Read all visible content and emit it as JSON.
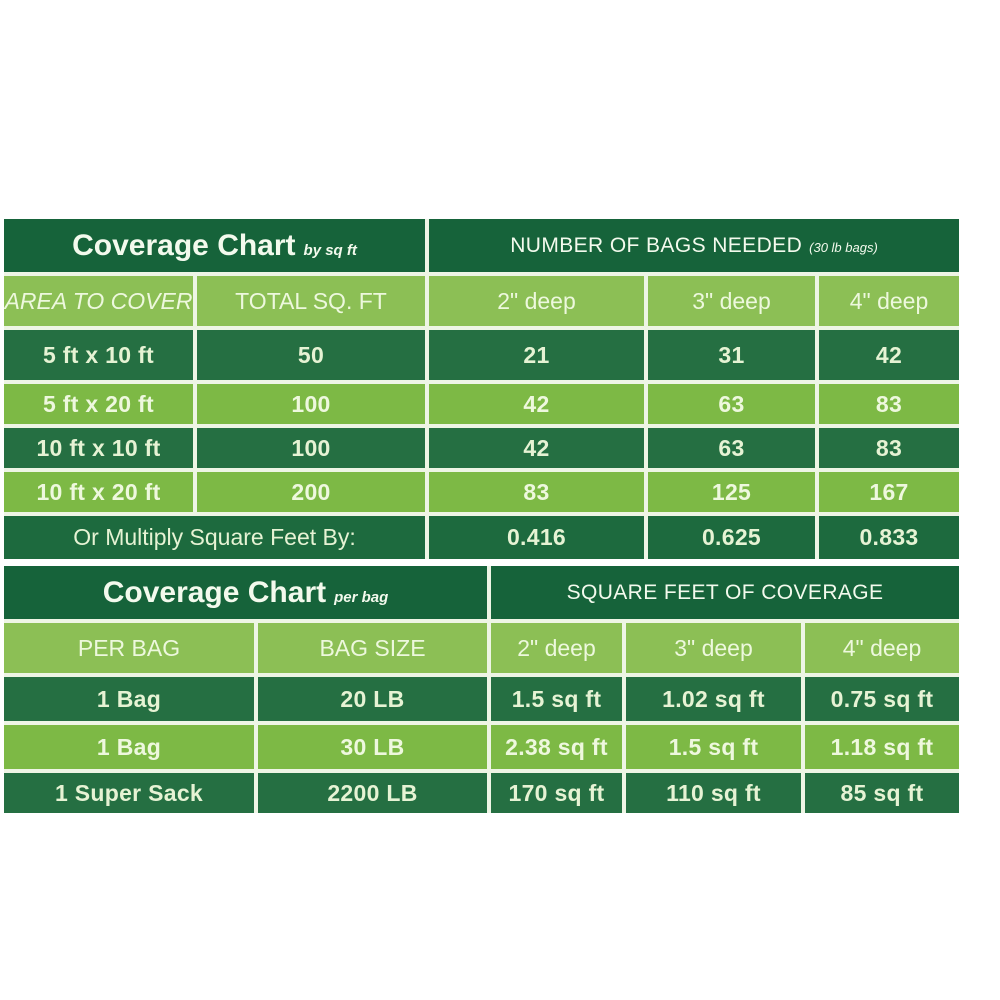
{
  "colors": {
    "title_bar_green": "#16633a",
    "dark_row_green": "#256f42",
    "light_row_green": "#7db945",
    "column_header_green": "#8cbf55",
    "footer_row_green": "#1d6a3e",
    "text_pale_green": "#e6f3d4",
    "separator": "#eef5e5",
    "page_background": "#ffffff"
  },
  "chart_data": [
    {
      "type": "table",
      "title": "Coverage Chart",
      "title_sub": "by sq ft",
      "right_header": "NUMBER OF BAGS NEEDED",
      "right_header_sub": "(30 lb bags)",
      "columns": [
        "AREA TO COVER",
        "TOTAL SQ. FT",
        "2\" deep",
        "3\" deep",
        "4\" deep"
      ],
      "rows": [
        [
          "5 ft x 10 ft",
          "50",
          "21",
          "31",
          "42"
        ],
        [
          "5 ft x 20 ft",
          "100",
          "42",
          "63",
          "83"
        ],
        [
          "10 ft x 10 ft",
          "100",
          "42",
          "63",
          "83"
        ],
        [
          "10 ft x 20 ft",
          "200",
          "83",
          "125",
          "167"
        ]
      ],
      "footer_label": "Or Multiply Square Feet By:",
      "footer_values": [
        "0.416",
        "0.625",
        "0.833"
      ]
    },
    {
      "type": "table",
      "title": "Coverage Chart",
      "title_sub": "per bag",
      "right_header": "SQUARE FEET OF COVERAGE",
      "columns": [
        "PER BAG",
        "BAG SIZE",
        "2\" deep",
        "3\" deep",
        "4\" deep"
      ],
      "rows": [
        [
          "1 Bag",
          "20 LB",
          "1.5 sq ft",
          "1.02 sq ft",
          "0.75 sq ft"
        ],
        [
          "1 Bag",
          "30 LB",
          "2.38 sq ft",
          "1.5 sq ft",
          "1.18 sq ft"
        ],
        [
          "1 Super Sack",
          "2200 LB",
          "170 sq ft",
          "110 sq ft",
          "85 sq ft"
        ]
      ]
    }
  ]
}
